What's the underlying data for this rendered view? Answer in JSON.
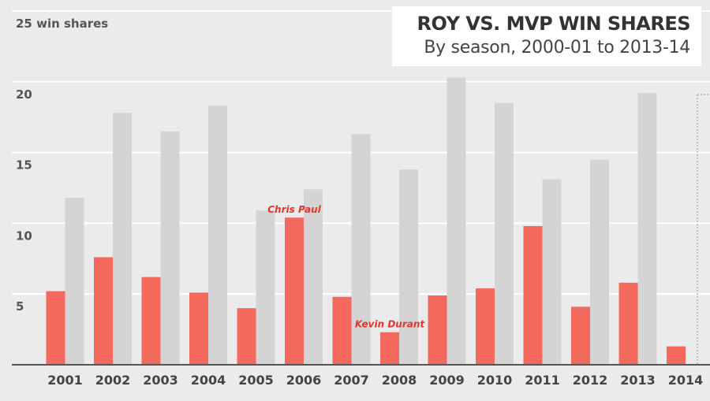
{
  "chart_data": {
    "type": "bar",
    "title": "ROY VS. MVP WIN SHARES",
    "subtitle": "By season, 2000-01 to 2013-14",
    "ylabel": "",
    "y_unit_label": "win shares",
    "xlabel": "",
    "ylim": [
      0,
      25
    ],
    "yticks": [
      {
        "value": 25,
        "label": "25 win shares"
      },
      {
        "value": 20,
        "label": "20"
      },
      {
        "value": 15,
        "label": "15"
      },
      {
        "value": 10,
        "label": "10"
      },
      {
        "value": 5,
        "label": "5"
      }
    ],
    "categories": [
      "2001",
      "2002",
      "2003",
      "2004",
      "2005",
      "2006",
      "2007",
      "2008",
      "2009",
      "2010",
      "2011",
      "2012",
      "2013",
      "2014"
    ],
    "series": [
      {
        "key": "roy",
        "color": "#f4695e",
        "values": [
          5.2,
          7.6,
          6.2,
          5.1,
          4.0,
          10.4,
          4.8,
          2.3,
          4.9,
          5.4,
          9.8,
          4.1,
          5.8,
          1.3
        ]
      },
      {
        "key": "mvp",
        "color": "#d4d4d4",
        "values": [
          11.8,
          17.8,
          16.5,
          18.3,
          10.9,
          12.4,
          16.3,
          13.8,
          20.3,
          18.5,
          13.1,
          14.5,
          19.2,
          null
        ],
        "placeholder": {
          "category": "2014",
          "value": 19.1
        }
      }
    ],
    "annotations": [
      {
        "text": "Chris Paul",
        "category": "2006",
        "series": "roy",
        "color": "#e8342b"
      },
      {
        "text": "Kevin Durant",
        "category": "2008",
        "series": "roy",
        "color": "#e8342b"
      }
    ],
    "grid": true,
    "legend": "none"
  }
}
